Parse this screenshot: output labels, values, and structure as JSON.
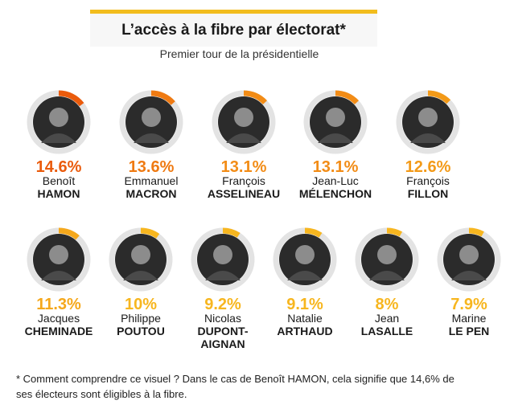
{
  "header": {
    "title": "L’accès à la fibre par électorat*",
    "subtitle": "Premier tour de la présidentielle"
  },
  "note": "* Comment comprendre ce visuel ? Dans le cas de Benoît HAMON, cela signifie que 14,6% de ses électeurs sont éligibles à la fibre.",
  "colors": {
    "title_bar": "#f2bd1d",
    "ring_track": "#e3e3e3",
    "photo_bg": "#2b2b2b",
    "ranks": [
      "#ea5b0c",
      "#ef7a12",
      "#f28c16",
      "#f39a18",
      "#f5a81c",
      "#f7b61f"
    ]
  },
  "chart_data": {
    "type": "pie",
    "title": "L’accès à la fibre par électorat*",
    "subtitle": "Premier tour de la présidentielle",
    "unit": "%",
    "candidates": [
      {
        "first_name": "Benoît",
        "last_name": "HAMON",
        "label": "14.6%",
        "value": 14.6
      },
      {
        "first_name": "Emmanuel",
        "last_name": "MACRON",
        "label": "13.6%",
        "value": 13.6
      },
      {
        "first_name": "François",
        "last_name": "ASSELINEAU",
        "label": "13.1%",
        "value": 13.1
      },
      {
        "first_name": "Jean-Luc",
        "last_name": "MÉLENCHON",
        "label": "13.1%",
        "value": 13.1
      },
      {
        "first_name": "François",
        "last_name": "FILLON",
        "label": "12.6%",
        "value": 12.6
      },
      {
        "first_name": "Jacques",
        "last_name": "CHEMINADE",
        "label": "11.3%",
        "value": 11.3
      },
      {
        "first_name": "Philippe",
        "last_name": "POUTOU",
        "label": "10%",
        "value": 10.0
      },
      {
        "first_name": "Nicolas",
        "last_name": "DUPONT-AIGNAN",
        "label": "9.2%",
        "value": 9.2
      },
      {
        "first_name": "Natalie",
        "last_name": "ARTHAUD",
        "label": "9.1%",
        "value": 9.1
      },
      {
        "first_name": "Jean",
        "last_name": "LASALLE",
        "label": "8%",
        "value": 8.0
      },
      {
        "first_name": "Marine",
        "last_name": "LE PEN",
        "label": "7.9%",
        "value": 7.9
      }
    ]
  }
}
